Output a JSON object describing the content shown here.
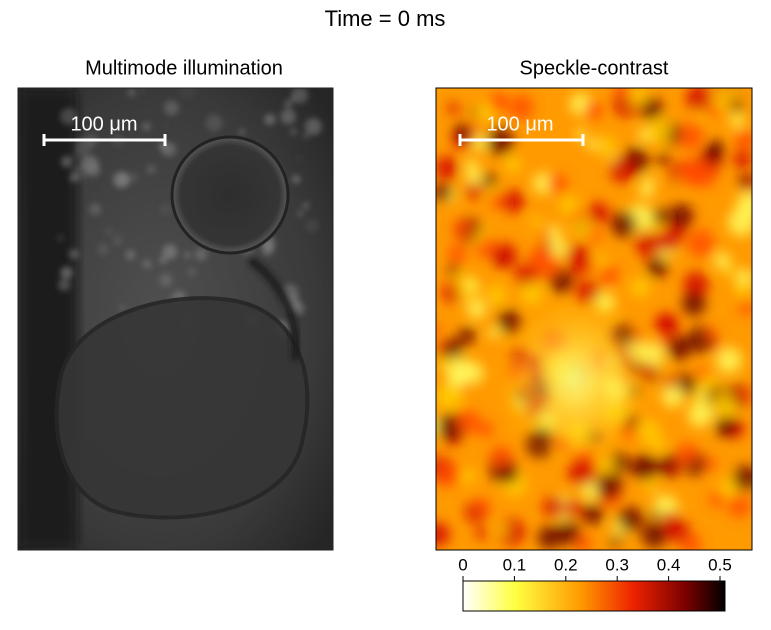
{
  "title": "Time = 0 ms",
  "panels": [
    {
      "title": "Multimode illumination",
      "scale_bar": "100 μm"
    },
    {
      "title": "Speckle-contrast",
      "scale_bar": "100 μm"
    }
  ],
  "colorbar": {
    "lim": [
      0,
      0.5
    ],
    "ticks": [
      0,
      0.1,
      0.2,
      0.3,
      0.4,
      0.5
    ]
  }
}
